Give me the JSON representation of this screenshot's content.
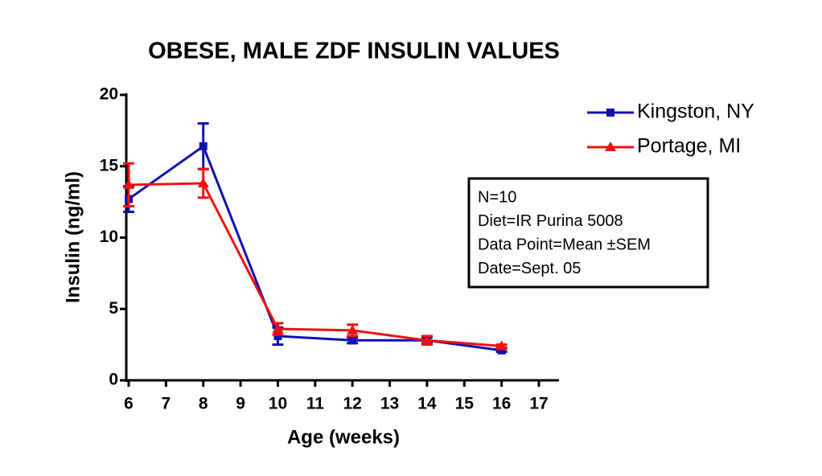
{
  "chart_data": {
    "type": "line",
    "title": "OBESE, MALE ZDF INSULIN VALUES",
    "x_label": "Age (weeks)",
    "y_label": "Insulin (ng/ml)",
    "x": [
      6,
      8,
      10,
      12,
      14,
      16
    ],
    "series": [
      {
        "name": "Kingston, NY",
        "color": "#1010b0",
        "marker": "square",
        "values": [
          12.7,
          16.4,
          3.1,
          2.8,
          2.8,
          2.1
        ],
        "errors": [
          0.9,
          1.6,
          0.6,
          0.2,
          0.2,
          0.1
        ]
      },
      {
        "name": "Portage, MI",
        "color": "#ee1111",
        "marker": "triangle",
        "values": [
          13.7,
          13.8,
          3.6,
          3.5,
          2.8,
          2.4
        ],
        "errors": [
          1.5,
          1.0,
          0.4,
          0.4,
          0.3,
          0.1
        ]
      }
    ],
    "xlim": [
      6,
      17
    ],
    "xticks": [
      6,
      7,
      8,
      9,
      10,
      11,
      12,
      13,
      14,
      15,
      16,
      17
    ],
    "ylim": [
      0,
      20
    ],
    "yticks": [
      0,
      5,
      10,
      15,
      20
    ],
    "legend": "top-right",
    "annotation": [
      "N=10",
      "Diet=IR Purina 5008",
      "Data Point=Mean ±SEM",
      "Date=Sept. 05"
    ]
  }
}
